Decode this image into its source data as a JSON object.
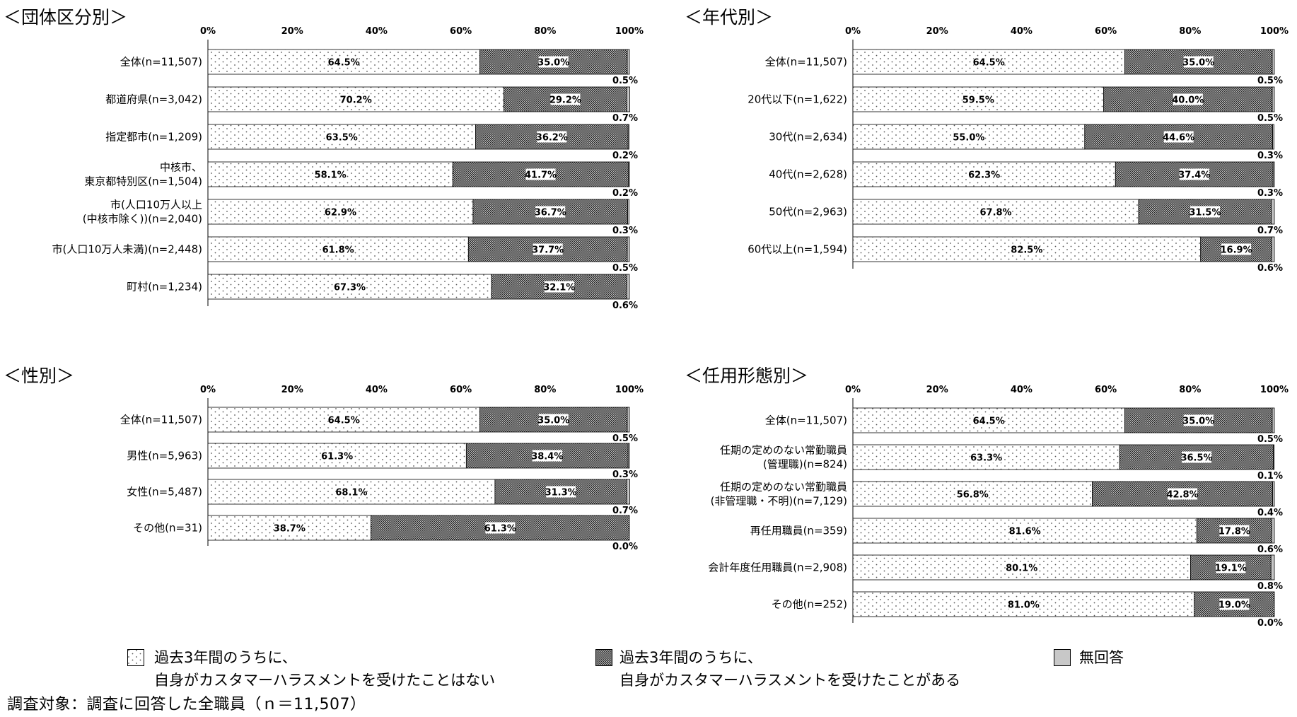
{
  "chart_data": [
    {
      "type": "bar",
      "orientation": "horizontal",
      "stacked": true,
      "title": "＜団体区分別＞",
      "xlim": [
        0,
        100
      ],
      "xticks": [
        "0%",
        "20%",
        "40%",
        "60%",
        "80%",
        "100%"
      ],
      "categories": [
        [
          "全体(n=11,507)"
        ],
        [
          "都道府県(n=3,042)"
        ],
        [
          "指定都市(n=1,209)"
        ],
        [
          "中核市、",
          "東京都特別区(n=1,504)"
        ],
        [
          "市(人口10万人以上",
          "(中核市除く))(n=2,040)"
        ],
        [
          "市(人口10万人未満)(n=2,448)"
        ],
        [
          "町村(n=1,234)"
        ]
      ],
      "series": [
        {
          "key": "none",
          "values": [
            64.5,
            70.2,
            63.5,
            58.1,
            62.9,
            61.8,
            67.3
          ],
          "labels": [
            "64.5%",
            "70.2%",
            "63.5%",
            "58.1%",
            "62.9%",
            "61.8%",
            "67.3%"
          ]
        },
        {
          "key": "had",
          "values": [
            35.0,
            29.2,
            36.2,
            41.7,
            36.7,
            37.7,
            32.1
          ],
          "labels": [
            "35.0%",
            "29.2%",
            "36.2%",
            "41.7%",
            "36.7%",
            "37.7%",
            "32.1%"
          ]
        },
        {
          "key": "noanswer",
          "values": [
            0.5,
            0.7,
            0.2,
            0.2,
            0.3,
            0.5,
            0.6
          ],
          "labels": [
            "0.5%",
            "0.7%",
            "0.2%",
            "0.2%",
            "0.3%",
            "0.5%",
            "0.6%"
          ]
        }
      ]
    },
    {
      "type": "bar",
      "orientation": "horizontal",
      "stacked": true,
      "title": "＜年代別＞",
      "xlim": [
        0,
        100
      ],
      "xticks": [
        "0%",
        "20%",
        "40%",
        "60%",
        "80%",
        "100%"
      ],
      "categories": [
        [
          "全体(n=11,507)"
        ],
        [
          "20代以下(n=1,622)"
        ],
        [
          "30代(n=2,634)"
        ],
        [
          "40代(n=2,628)"
        ],
        [
          "50代(n=2,963)"
        ],
        [
          "60代以上(n=1,594)"
        ]
      ],
      "series": [
        {
          "key": "none",
          "values": [
            64.5,
            59.5,
            55.0,
            62.3,
            67.8,
            82.5
          ],
          "labels": [
            "64.5%",
            "59.5%",
            "55.0%",
            "62.3%",
            "67.8%",
            "82.5%"
          ]
        },
        {
          "key": "had",
          "values": [
            35.0,
            40.0,
            44.6,
            37.4,
            31.5,
            16.9
          ],
          "labels": [
            "35.0%",
            "40.0%",
            "44.6%",
            "37.4%",
            "31.5%",
            "16.9%"
          ]
        },
        {
          "key": "noanswer",
          "values": [
            0.5,
            0.5,
            0.3,
            0.3,
            0.7,
            0.6
          ],
          "labels": [
            "0.5%",
            "0.5%",
            "0.3%",
            "0.3%",
            "0.7%",
            "0.6%"
          ]
        }
      ]
    },
    {
      "type": "bar",
      "orientation": "horizontal",
      "stacked": true,
      "title": "＜性別＞",
      "xlim": [
        0,
        100
      ],
      "xticks": [
        "0%",
        "20%",
        "40%",
        "60%",
        "80%",
        "100%"
      ],
      "categories": [
        [
          "全体(n=11,507)"
        ],
        [
          "男性(n=5,963)"
        ],
        [
          "女性(n=5,487)"
        ],
        [
          "その他(n=31)"
        ]
      ],
      "series": [
        {
          "key": "none",
          "values": [
            64.5,
            61.3,
            68.1,
            38.7
          ],
          "labels": [
            "64.5%",
            "61.3%",
            "68.1%",
            "38.7%"
          ]
        },
        {
          "key": "had",
          "values": [
            35.0,
            38.4,
            31.3,
            61.3
          ],
          "labels": [
            "35.0%",
            "38.4%",
            "31.3%",
            "61.3%"
          ]
        },
        {
          "key": "noanswer",
          "values": [
            0.5,
            0.3,
            0.7,
            0.0
          ],
          "labels": [
            "0.5%",
            "0.3%",
            "0.7%",
            "0.0%"
          ]
        }
      ]
    },
    {
      "type": "bar",
      "orientation": "horizontal",
      "stacked": true,
      "title": "＜任用形態別＞",
      "xlim": [
        0,
        100
      ],
      "xticks": [
        "0%",
        "20%",
        "40%",
        "60%",
        "80%",
        "100%"
      ],
      "categories": [
        [
          "全体(n=11,507)"
        ],
        [
          "任期の定めのない常勤職員",
          "(管理職)(n=824)"
        ],
        [
          "任期の定めのない常勤職員",
          "(非管理職・不明)(n=7,129)"
        ],
        [
          "再任用職員(n=359)"
        ],
        [
          "会計年度任用職員(n=2,908)"
        ],
        [
          "その他(n=252)"
        ]
      ],
      "series": [
        {
          "key": "none",
          "values": [
            64.5,
            63.3,
            56.8,
            81.6,
            80.1,
            81.0
          ],
          "labels": [
            "64.5%",
            "63.3%",
            "56.8%",
            "81.6%",
            "80.1%",
            "81.0%"
          ]
        },
        {
          "key": "had",
          "values": [
            35.0,
            36.5,
            42.8,
            17.8,
            19.1,
            19.0
          ],
          "labels": [
            "35.0%",
            "36.5%",
            "42.8%",
            "17.8%",
            "19.1%",
            "19.0%"
          ]
        },
        {
          "key": "noanswer",
          "values": [
            0.5,
            0.1,
            0.4,
            0.6,
            0.8,
            0.0
          ],
          "labels": [
            "0.5%",
            "0.1%",
            "0.4%",
            "0.6%",
            "0.8%",
            "0.0%"
          ]
        }
      ]
    }
  ],
  "legend": {
    "items": [
      {
        "key": "none",
        "line1": "過去3年間のうちに、",
        "line2": "自身がカスタマーハラスメントを受けたことはない"
      },
      {
        "key": "had",
        "line1": "過去3年間のうちに、",
        "line2": "自身がカスタマーハラスメントを受けたことがある"
      },
      {
        "key": "noanswer",
        "line1": "無回答",
        "line2": ""
      }
    ]
  },
  "footer": {
    "text": "調査対象：調査に回答した全職員（ｎ＝11,507）"
  },
  "colors": {
    "dots_bg": "#ffffff",
    "dots": "#555555",
    "checker_dark": "#222222",
    "checker_light": "#bbbbbb",
    "noanswer": "#c8c8c8",
    "axis": "#000000"
  }
}
